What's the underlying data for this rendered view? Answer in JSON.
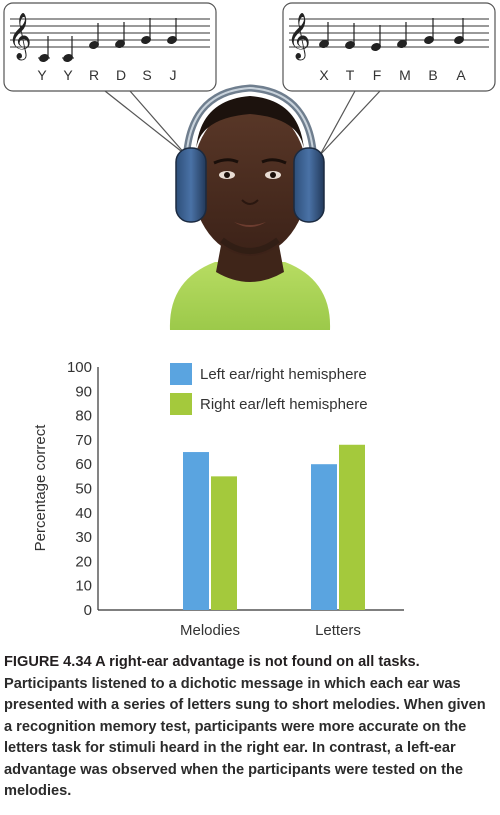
{
  "illustration": {
    "left_bubble": {
      "letters": [
        "Y",
        "Y",
        "R",
        "D",
        "S",
        "J"
      ]
    },
    "right_bubble": {
      "letters": [
        "X",
        "T",
        "F",
        "M",
        "B",
        "A"
      ]
    }
  },
  "chart_data": {
    "type": "bar",
    "title": "",
    "xlabel": "",
    "ylabel": "Percentage correct",
    "ylim": [
      0,
      100
    ],
    "yticks": [
      0,
      10,
      20,
      30,
      40,
      50,
      60,
      70,
      80,
      90,
      100
    ],
    "categories": [
      "Melodies",
      "Letters"
    ],
    "series": [
      {
        "name": "Left ear/right hemisphere",
        "color": "#5aa4e0",
        "values": [
          65,
          60
        ]
      },
      {
        "name": "Right ear/left hemisphere",
        "color": "#a4c93c",
        "values": [
          55,
          68
        ]
      }
    ],
    "legend_position": "top-center"
  },
  "caption": {
    "title": "FIGURE 4.34 A right-ear advantage is not found on all tasks.",
    "body": "Participants listened to a dichotic message in which each ear was presented with a series of letters sung to short melodies. When given a recognition memory test, participants were more accurate on the letters task for stimuli heard in the right ear. In contrast, a left-ear advantage was observed when the participants were tested on the melodies."
  }
}
